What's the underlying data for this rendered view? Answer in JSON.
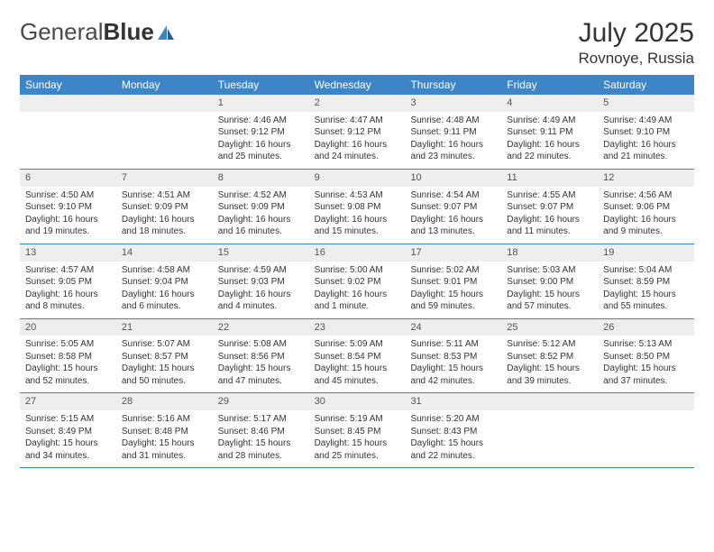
{
  "brand": {
    "part1": "General",
    "part2": "Blue"
  },
  "title": "July 2025",
  "location": "Rovnoye, Russia",
  "colors": {
    "header_bg": "#3d85c6",
    "daynum_bg": "#eeeeee",
    "text": "#333333",
    "logo_accent": "#3d85c6"
  },
  "weekdays": [
    "Sunday",
    "Monday",
    "Tuesday",
    "Wednesday",
    "Thursday",
    "Friday",
    "Saturday"
  ],
  "weeks": [
    [
      {
        "n": "",
        "sunrise": "",
        "sunset": "",
        "dayl1": "",
        "dayl2": ""
      },
      {
        "n": "",
        "sunrise": "",
        "sunset": "",
        "dayl1": "",
        "dayl2": ""
      },
      {
        "n": "1",
        "sunrise": "Sunrise: 4:46 AM",
        "sunset": "Sunset: 9:12 PM",
        "dayl1": "Daylight: 16 hours",
        "dayl2": "and 25 minutes."
      },
      {
        "n": "2",
        "sunrise": "Sunrise: 4:47 AM",
        "sunset": "Sunset: 9:12 PM",
        "dayl1": "Daylight: 16 hours",
        "dayl2": "and 24 minutes."
      },
      {
        "n": "3",
        "sunrise": "Sunrise: 4:48 AM",
        "sunset": "Sunset: 9:11 PM",
        "dayl1": "Daylight: 16 hours",
        "dayl2": "and 23 minutes."
      },
      {
        "n": "4",
        "sunrise": "Sunrise: 4:49 AM",
        "sunset": "Sunset: 9:11 PM",
        "dayl1": "Daylight: 16 hours",
        "dayl2": "and 22 minutes."
      },
      {
        "n": "5",
        "sunrise": "Sunrise: 4:49 AM",
        "sunset": "Sunset: 9:10 PM",
        "dayl1": "Daylight: 16 hours",
        "dayl2": "and 21 minutes."
      }
    ],
    [
      {
        "n": "6",
        "sunrise": "Sunrise: 4:50 AM",
        "sunset": "Sunset: 9:10 PM",
        "dayl1": "Daylight: 16 hours",
        "dayl2": "and 19 minutes."
      },
      {
        "n": "7",
        "sunrise": "Sunrise: 4:51 AM",
        "sunset": "Sunset: 9:09 PM",
        "dayl1": "Daylight: 16 hours",
        "dayl2": "and 18 minutes."
      },
      {
        "n": "8",
        "sunrise": "Sunrise: 4:52 AM",
        "sunset": "Sunset: 9:09 PM",
        "dayl1": "Daylight: 16 hours",
        "dayl2": "and 16 minutes."
      },
      {
        "n": "9",
        "sunrise": "Sunrise: 4:53 AM",
        "sunset": "Sunset: 9:08 PM",
        "dayl1": "Daylight: 16 hours",
        "dayl2": "and 15 minutes."
      },
      {
        "n": "10",
        "sunrise": "Sunrise: 4:54 AM",
        "sunset": "Sunset: 9:07 PM",
        "dayl1": "Daylight: 16 hours",
        "dayl2": "and 13 minutes."
      },
      {
        "n": "11",
        "sunrise": "Sunrise: 4:55 AM",
        "sunset": "Sunset: 9:07 PM",
        "dayl1": "Daylight: 16 hours",
        "dayl2": "and 11 minutes."
      },
      {
        "n": "12",
        "sunrise": "Sunrise: 4:56 AM",
        "sunset": "Sunset: 9:06 PM",
        "dayl1": "Daylight: 16 hours",
        "dayl2": "and 9 minutes."
      }
    ],
    [
      {
        "n": "13",
        "sunrise": "Sunrise: 4:57 AM",
        "sunset": "Sunset: 9:05 PM",
        "dayl1": "Daylight: 16 hours",
        "dayl2": "and 8 minutes."
      },
      {
        "n": "14",
        "sunrise": "Sunrise: 4:58 AM",
        "sunset": "Sunset: 9:04 PM",
        "dayl1": "Daylight: 16 hours",
        "dayl2": "and 6 minutes."
      },
      {
        "n": "15",
        "sunrise": "Sunrise: 4:59 AM",
        "sunset": "Sunset: 9:03 PM",
        "dayl1": "Daylight: 16 hours",
        "dayl2": "and 4 minutes."
      },
      {
        "n": "16",
        "sunrise": "Sunrise: 5:00 AM",
        "sunset": "Sunset: 9:02 PM",
        "dayl1": "Daylight: 16 hours",
        "dayl2": "and 1 minute."
      },
      {
        "n": "17",
        "sunrise": "Sunrise: 5:02 AM",
        "sunset": "Sunset: 9:01 PM",
        "dayl1": "Daylight: 15 hours",
        "dayl2": "and 59 minutes."
      },
      {
        "n": "18",
        "sunrise": "Sunrise: 5:03 AM",
        "sunset": "Sunset: 9:00 PM",
        "dayl1": "Daylight: 15 hours",
        "dayl2": "and 57 minutes."
      },
      {
        "n": "19",
        "sunrise": "Sunrise: 5:04 AM",
        "sunset": "Sunset: 8:59 PM",
        "dayl1": "Daylight: 15 hours",
        "dayl2": "and 55 minutes."
      }
    ],
    [
      {
        "n": "20",
        "sunrise": "Sunrise: 5:05 AM",
        "sunset": "Sunset: 8:58 PM",
        "dayl1": "Daylight: 15 hours",
        "dayl2": "and 52 minutes."
      },
      {
        "n": "21",
        "sunrise": "Sunrise: 5:07 AM",
        "sunset": "Sunset: 8:57 PM",
        "dayl1": "Daylight: 15 hours",
        "dayl2": "and 50 minutes."
      },
      {
        "n": "22",
        "sunrise": "Sunrise: 5:08 AM",
        "sunset": "Sunset: 8:56 PM",
        "dayl1": "Daylight: 15 hours",
        "dayl2": "and 47 minutes."
      },
      {
        "n": "23",
        "sunrise": "Sunrise: 5:09 AM",
        "sunset": "Sunset: 8:54 PM",
        "dayl1": "Daylight: 15 hours",
        "dayl2": "and 45 minutes."
      },
      {
        "n": "24",
        "sunrise": "Sunrise: 5:11 AM",
        "sunset": "Sunset: 8:53 PM",
        "dayl1": "Daylight: 15 hours",
        "dayl2": "and 42 minutes."
      },
      {
        "n": "25",
        "sunrise": "Sunrise: 5:12 AM",
        "sunset": "Sunset: 8:52 PM",
        "dayl1": "Daylight: 15 hours",
        "dayl2": "and 39 minutes."
      },
      {
        "n": "26",
        "sunrise": "Sunrise: 5:13 AM",
        "sunset": "Sunset: 8:50 PM",
        "dayl1": "Daylight: 15 hours",
        "dayl2": "and 37 minutes."
      }
    ],
    [
      {
        "n": "27",
        "sunrise": "Sunrise: 5:15 AM",
        "sunset": "Sunset: 8:49 PM",
        "dayl1": "Daylight: 15 hours",
        "dayl2": "and 34 minutes."
      },
      {
        "n": "28",
        "sunrise": "Sunrise: 5:16 AM",
        "sunset": "Sunset: 8:48 PM",
        "dayl1": "Daylight: 15 hours",
        "dayl2": "and 31 minutes."
      },
      {
        "n": "29",
        "sunrise": "Sunrise: 5:17 AM",
        "sunset": "Sunset: 8:46 PM",
        "dayl1": "Daylight: 15 hours",
        "dayl2": "and 28 minutes."
      },
      {
        "n": "30",
        "sunrise": "Sunrise: 5:19 AM",
        "sunset": "Sunset: 8:45 PM",
        "dayl1": "Daylight: 15 hours",
        "dayl2": "and 25 minutes."
      },
      {
        "n": "31",
        "sunrise": "Sunrise: 5:20 AM",
        "sunset": "Sunset: 8:43 PM",
        "dayl1": "Daylight: 15 hours",
        "dayl2": "and 22 minutes."
      },
      {
        "n": "",
        "sunrise": "",
        "sunset": "",
        "dayl1": "",
        "dayl2": ""
      },
      {
        "n": "",
        "sunrise": "",
        "sunset": "",
        "dayl1": "",
        "dayl2": ""
      }
    ]
  ]
}
